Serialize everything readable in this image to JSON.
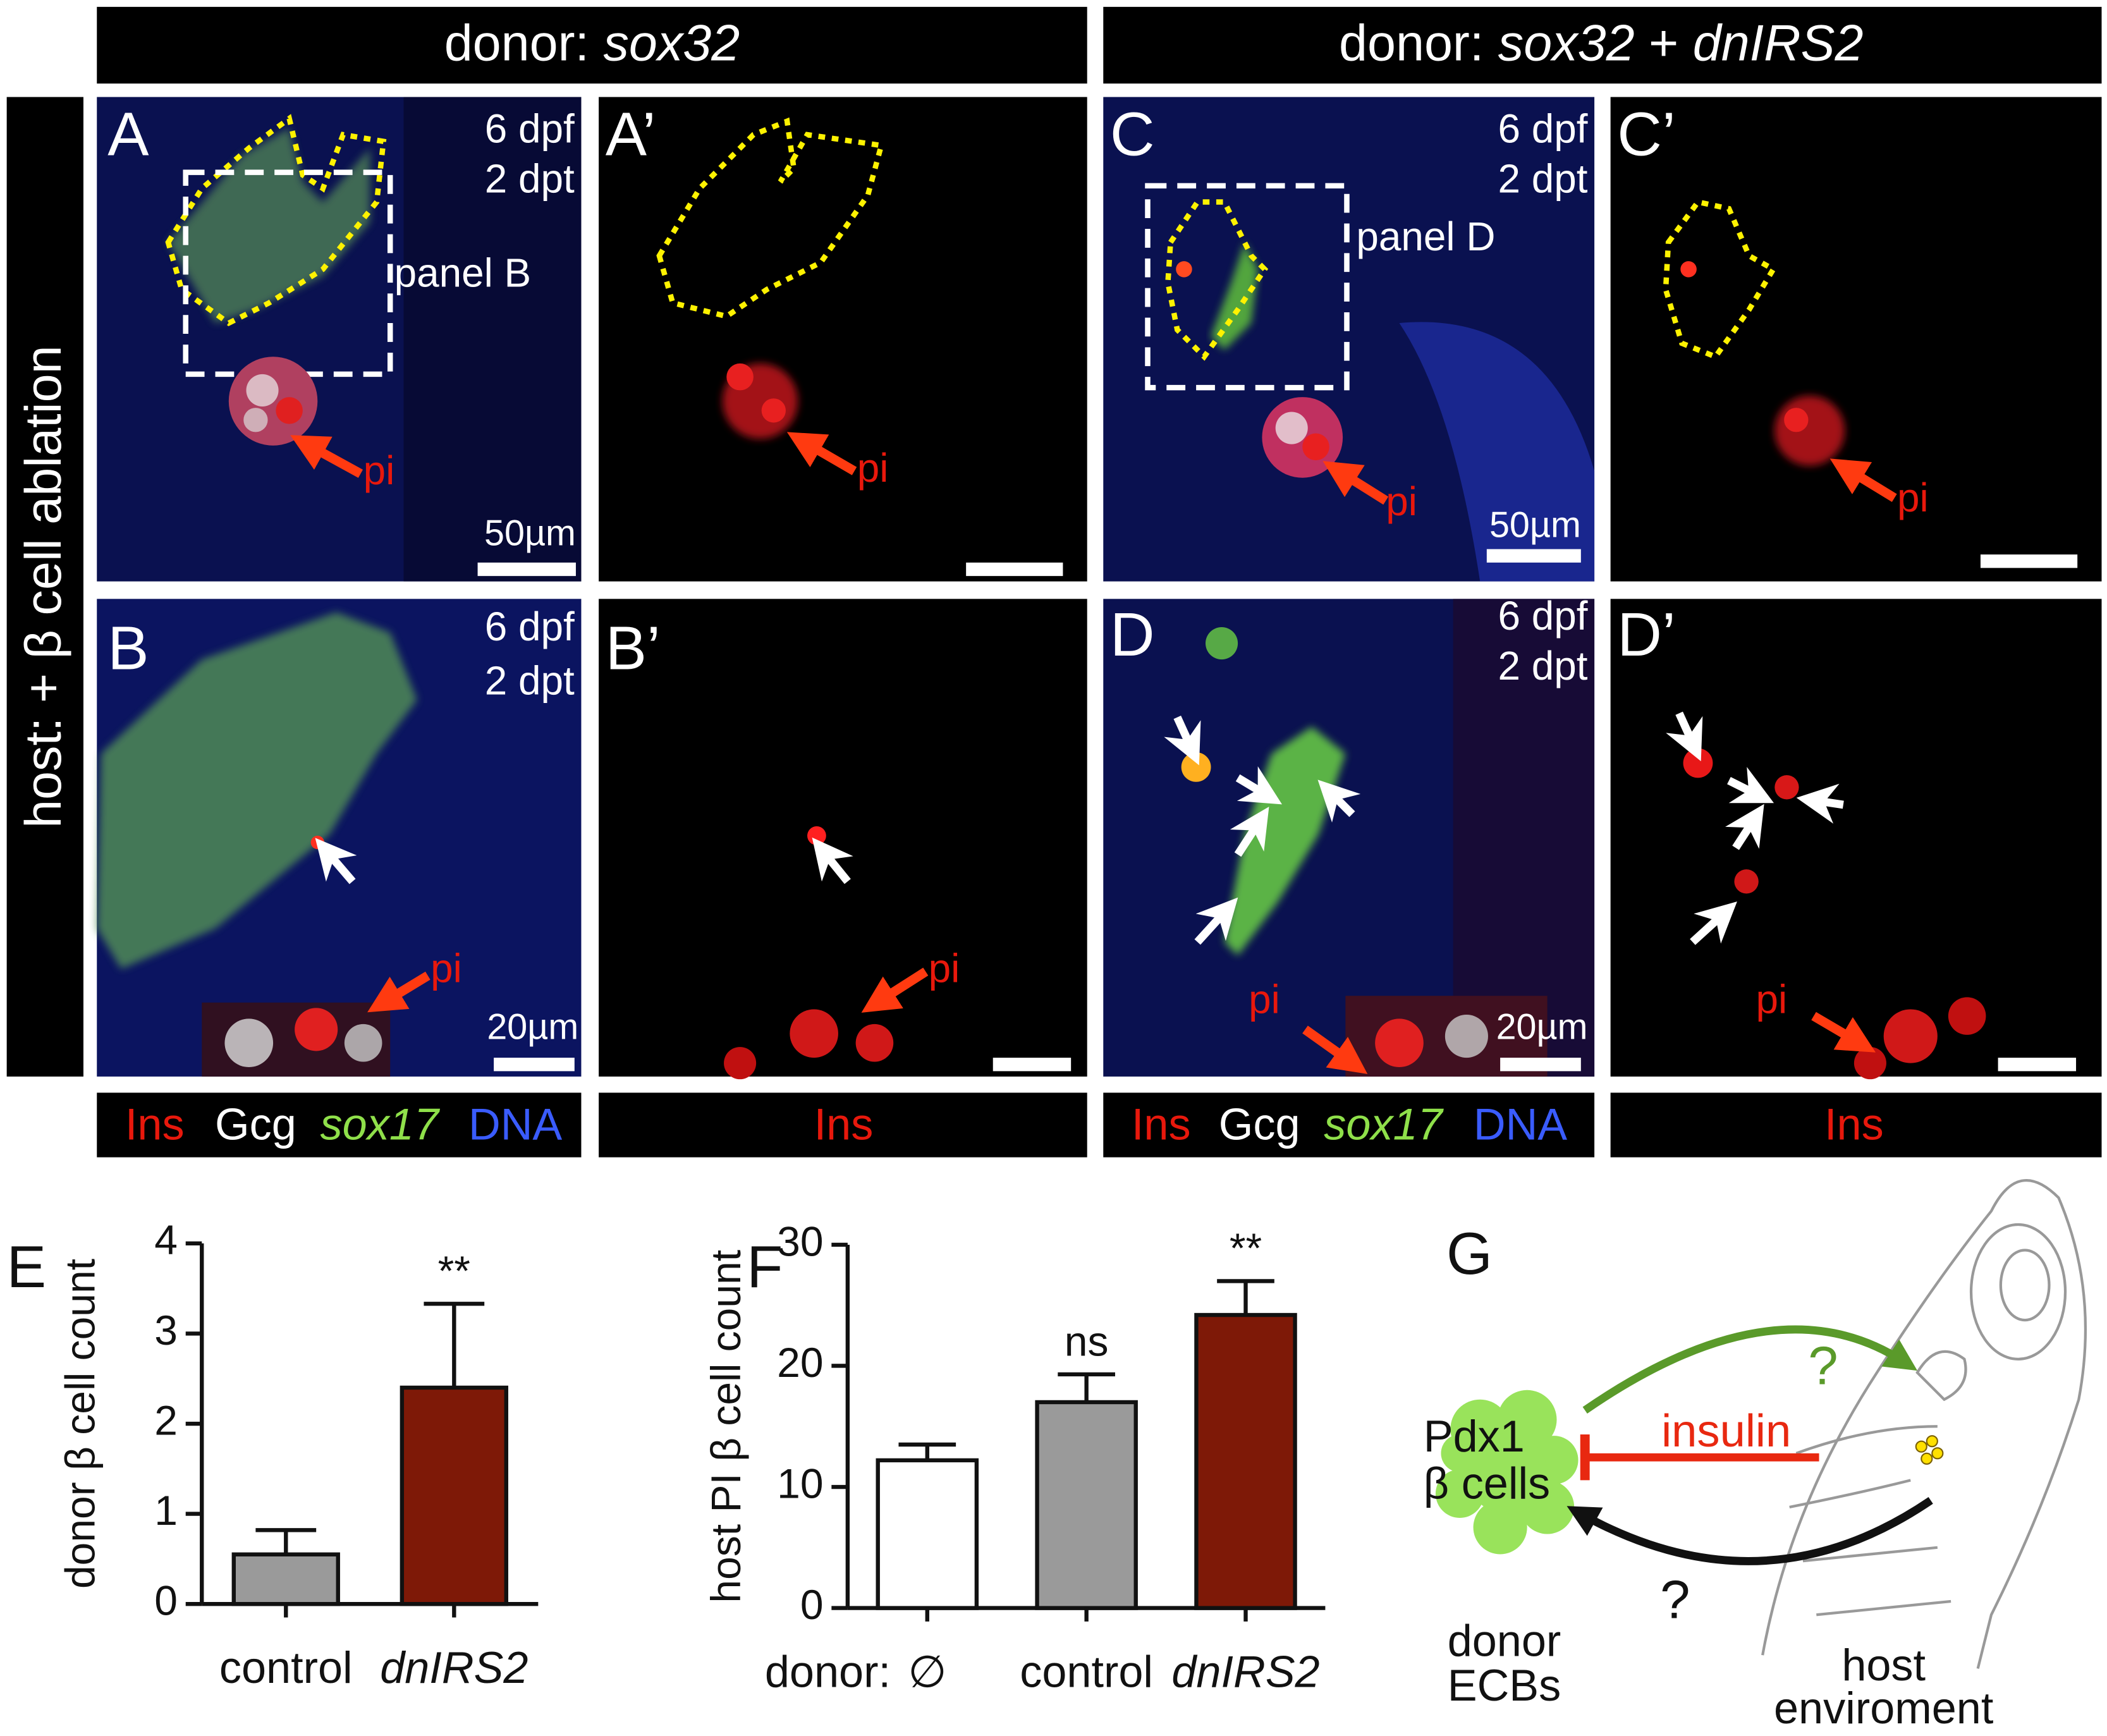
{
  "header_left": {
    "label": "donor:",
    "gene": "sox32"
  },
  "header_right": {
    "label": "donor:",
    "gene1": "sox32",
    "plus": "+",
    "gene2": "dnIRS2"
  },
  "side_label": "host:  + β cell ablation",
  "panels": [
    {
      "letter": "A",
      "age": "6 dpf",
      "time": "2 dpt",
      "box_label": "panel B",
      "arrow_label": "pi",
      "scale": "50µm"
    },
    {
      "letter": "A’",
      "arrow_label": "pi"
    },
    {
      "letter": "C",
      "age": "6 dpf",
      "time": "2 dpt",
      "box_label": "panel D",
      "arrow_label": "pi",
      "scale": "50µm"
    },
    {
      "letter": "C’",
      "arrow_label": "pi"
    },
    {
      "letter": "B",
      "age": "6 dpf",
      "time": "2 dpt",
      "arrow_label": "pi",
      "scale": "20µm"
    },
    {
      "letter": "B’",
      "arrow_label": "pi"
    },
    {
      "letter": "D",
      "age": "6 dpf",
      "time": "2 dpt",
      "arrow_label": "pi",
      "scale": "20µm"
    },
    {
      "letter": "D’",
      "arrow_label": "pi"
    }
  ],
  "stain_bars": [
    [
      "Ins",
      "Gcg",
      "sox17",
      "DNA"
    ],
    [
      "Ins"
    ],
    [
      "Ins",
      "Gcg",
      "sox17",
      "DNA"
    ],
    [
      "Ins"
    ]
  ],
  "chart_data": [
    {
      "type": "bar",
      "panel_label": "E",
      "y_label": "donor β cell count",
      "categories": [
        "control",
        "dnIRS2"
      ],
      "values": [
        0.55,
        2.4
      ],
      "errors": [
        0.27,
        0.93
      ],
      "colors": [
        "#9a9a9a",
        "#7e1907"
      ],
      "annotations": [
        null,
        "**"
      ],
      "ylim": [
        0,
        4
      ],
      "yticks": [
        0,
        1,
        2,
        3,
        4
      ]
    },
    {
      "type": "bar",
      "panel_label": "F",
      "y_label": "host PI β cell count",
      "x_prefix": "donor:",
      "categories": [
        "∅",
        "control",
        "dnIRS2"
      ],
      "values": [
        12.2,
        17,
        24.2
      ],
      "errors": [
        1.3,
        2.3,
        2.8
      ],
      "colors": [
        "#ffffff",
        "#9a9a9a",
        "#7e1907"
      ],
      "annotations": [
        null,
        "ns",
        "**"
      ],
      "ylim": [
        0,
        30
      ],
      "yticks": [
        0,
        10,
        20,
        30
      ]
    }
  ],
  "diagram": {
    "label": "G",
    "cell_line1": "Pdx1",
    "cell_line2": "β cells",
    "donor_line1": "donor",
    "donor_line2": "ECBs",
    "signal": "insulin",
    "unknown_top": "?",
    "unknown_bottom": "?",
    "host_line1": "host",
    "host_line2": "enviroment"
  }
}
